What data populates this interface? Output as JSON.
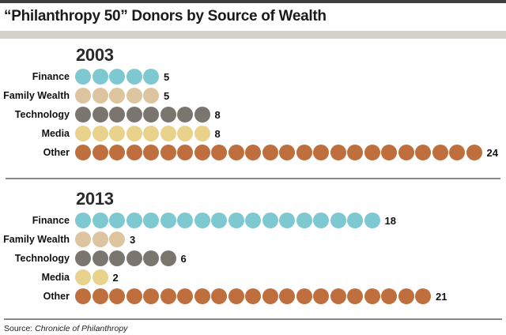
{
  "title": "“Philanthropy 50” Donors by Source of Wealth",
  "source": {
    "prefix": "Source: ",
    "name": "Chronicle of Philanthropy"
  },
  "palette": {
    "Finance": "#7ec9d1",
    "Family Wealth": "#dcc59f",
    "Technology": "#7b7570",
    "Media": "#e9d28c",
    "Other": "#bf6e3d"
  },
  "chart_data": [
    {
      "type": "bar",
      "subtype": "unit_dot_pictogram",
      "title": "2003",
      "categories": [
        "Finance",
        "Family Wealth",
        "Technology",
        "Media",
        "Other"
      ],
      "values": [
        5,
        5,
        8,
        8,
        24
      ],
      "value_labels": [
        "5",
        "5",
        "8",
        "8",
        "24"
      ],
      "total": 50,
      "legend": "none",
      "grid": "off"
    },
    {
      "type": "bar",
      "subtype": "unit_dot_pictogram",
      "title": "2013",
      "categories": [
        "Finance",
        "Family Wealth",
        "Technology",
        "Media",
        "Other"
      ],
      "values": [
        18,
        3,
        6,
        2,
        21
      ],
      "value_labels": [
        "18",
        "3",
        "6",
        "2",
        "21"
      ],
      "total": 50,
      "legend": "none",
      "grid": "off"
    }
  ]
}
